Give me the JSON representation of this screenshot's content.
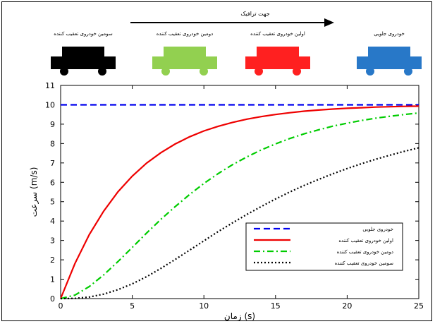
{
  "traffic": {
    "direction_label": "جهت ترافیک",
    "cars": [
      {
        "label": "سومین خودروی تعقیب کننده",
        "color": "#000000",
        "icon": "car-icon"
      },
      {
        "label": "دومین خودروی تعقیب کننده",
        "color": "#92d050",
        "icon": "car-icon"
      },
      {
        "label": "اولین خودروی تعقیب کننده",
        "color": "#ff2020",
        "icon": "car-icon"
      },
      {
        "label": "خودروی جلویی",
        "color": "#2878c8",
        "icon": "car-icon"
      }
    ]
  },
  "chart_data": {
    "type": "line",
    "xlabel": "زمان (s)",
    "ylabel": "سرعت (m/s)",
    "xlim": [
      0,
      25
    ],
    "ylim": [
      0,
      11
    ],
    "x_ticks": [
      0,
      5,
      10,
      15,
      20,
      25
    ],
    "y_ticks": [
      0,
      1,
      2,
      3,
      4,
      5,
      6,
      7,
      8,
      9,
      10,
      11
    ],
    "grid": false,
    "legend_position": "bottom-right",
    "series": [
      {
        "name": "خودروی جلویی",
        "color": "#0000ee",
        "style": "dashed",
        "x": [
          0,
          25
        ],
        "y": [
          10,
          10
        ]
      },
      {
        "name": "اولین خودروی تعقیب کننده",
        "color": "#ee0000",
        "style": "solid",
        "x": [
          0,
          1,
          2,
          3,
          4,
          5,
          6,
          7,
          8,
          9,
          10,
          11,
          12,
          13,
          14,
          15,
          16,
          17,
          18,
          19,
          20,
          21,
          22,
          23,
          24,
          25
        ],
        "y": [
          0,
          1.81,
          3.3,
          4.51,
          5.51,
          6.32,
          6.99,
          7.53,
          7.98,
          8.35,
          8.65,
          8.89,
          9.09,
          9.26,
          9.39,
          9.5,
          9.59,
          9.67,
          9.73,
          9.78,
          9.82,
          9.85,
          9.88,
          9.9,
          9.92,
          9.93
        ]
      },
      {
        "name": "دومین خودروی تعقیب کننده",
        "color": "#00cc00",
        "style": "dash-dot",
        "x": [
          0,
          1,
          2,
          3,
          4,
          5,
          6,
          7,
          8,
          9,
          10,
          11,
          12,
          13,
          14,
          15,
          16,
          17,
          18,
          19,
          20,
          21,
          22,
          23,
          24,
          25
        ],
        "y": [
          0,
          0.18,
          0.62,
          1.22,
          1.91,
          2.64,
          3.38,
          4.09,
          4.75,
          5.37,
          5.94,
          6.45,
          6.91,
          7.31,
          7.67,
          7.98,
          8.26,
          8.5,
          8.71,
          8.9,
          9.05,
          9.19,
          9.31,
          9.41,
          9.5,
          9.58
        ]
      },
      {
        "name": "سومین خودروی تعقیب کننده",
        "color": "#000000",
        "style": "dotted",
        "x": [
          0,
          1,
          2,
          3,
          4,
          5,
          6,
          7,
          8,
          9,
          10,
          11,
          12,
          13,
          14,
          15,
          16,
          17,
          18,
          19,
          20,
          21,
          22,
          23,
          24,
          25
        ],
        "y": [
          0,
          0.01,
          0.08,
          0.23,
          0.46,
          0.76,
          1.13,
          1.56,
          2.02,
          2.5,
          2.98,
          3.46,
          3.91,
          4.34,
          4.75,
          5.14,
          5.5,
          5.84,
          6.15,
          6.44,
          6.71,
          6.96,
          7.19,
          7.4,
          7.6,
          7.78
        ]
      }
    ]
  }
}
